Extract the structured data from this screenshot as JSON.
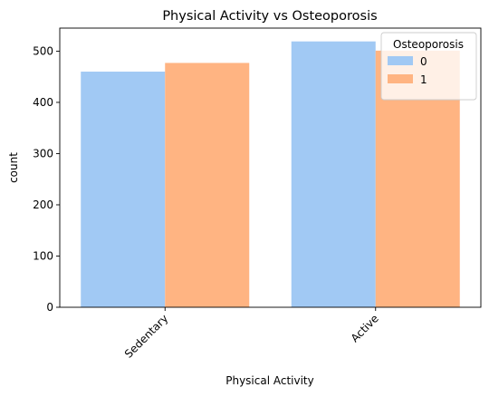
{
  "chart_data": {
    "type": "bar",
    "title": "Physical Activity vs Osteoporosis",
    "xlabel": "Physical Activity",
    "ylabel": "count",
    "categories": [
      "Sedentary",
      "Active"
    ],
    "series": [
      {
        "name": "0",
        "values": [
          460,
          519
        ],
        "color": "#a1c9f4"
      },
      {
        "name": "1",
        "values": [
          477,
          501
        ],
        "color": "#ffb482"
      }
    ],
    "ylim": [
      0,
      545
    ],
    "yticks": [
      0,
      100,
      200,
      300,
      400,
      500
    ],
    "grid": false,
    "legend": {
      "title": "Osteoporosis",
      "placement": "top-right"
    }
  }
}
